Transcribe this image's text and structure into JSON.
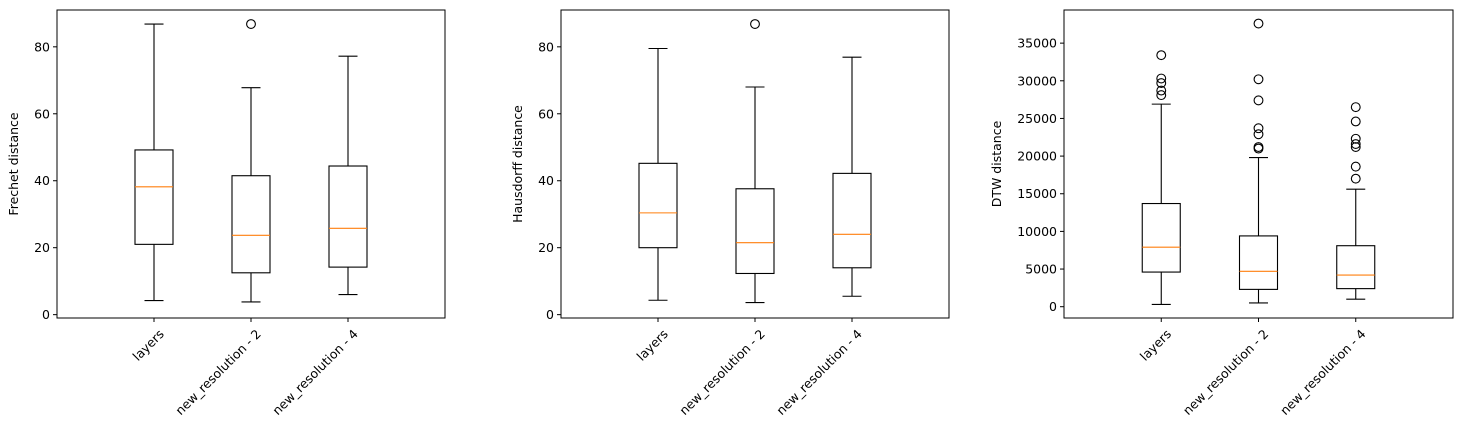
{
  "chart_data": [
    {
      "type": "boxplot",
      "ylabel": "Frechet distance",
      "categories": [
        "layers",
        "new_resolution - 2",
        "new_resolution - 4"
      ],
      "ylim": [
        -1,
        91
      ],
      "yticks": [
        0,
        20,
        40,
        60,
        80
      ],
      "boxes": [
        {
          "whisker_low": 4.2,
          "q1": 21.0,
          "median": 38.2,
          "q3": 49.2,
          "whisker_high": 86.8,
          "fliers": []
        },
        {
          "whisker_low": 3.8,
          "q1": 12.5,
          "median": 23.7,
          "q3": 41.5,
          "whisker_high": 67.8,
          "fliers": [
            86.8
          ]
        },
        {
          "whisker_low": 6.0,
          "q1": 14.2,
          "median": 25.8,
          "q3": 44.4,
          "whisker_high": 77.2,
          "fliers": []
        }
      ]
    },
    {
      "type": "boxplot",
      "ylabel": "Hausdorff distance",
      "categories": [
        "layers",
        "new_resolution - 2",
        "new_resolution - 4"
      ],
      "ylim": [
        -1,
        91
      ],
      "yticks": [
        0,
        20,
        40,
        60,
        80
      ],
      "boxes": [
        {
          "whisker_low": 4.3,
          "q1": 20.0,
          "median": 30.4,
          "q3": 45.2,
          "whisker_high": 79.5,
          "fliers": []
        },
        {
          "whisker_low": 3.6,
          "q1": 12.3,
          "median": 21.5,
          "q3": 37.6,
          "whisker_high": 68.0,
          "fliers": [
            86.8
          ]
        },
        {
          "whisker_low": 5.5,
          "q1": 14.0,
          "median": 24.0,
          "q3": 42.2,
          "whisker_high": 76.9,
          "fliers": []
        }
      ]
    },
    {
      "type": "boxplot",
      "ylabel": "DTW distance",
      "categories": [
        "layers",
        "new_resolution - 2",
        "new_resolution - 4"
      ],
      "ylim": [
        -1500,
        39400
      ],
      "yticks": [
        0,
        5000,
        10000,
        15000,
        20000,
        25000,
        30000,
        35000
      ],
      "boxes": [
        {
          "whisker_low": 300,
          "q1": 4600,
          "median": 7900,
          "q3": 13700,
          "whisker_high": 26900,
          "fliers": [
            28100,
            28700,
            29700,
            30300,
            33400
          ]
        },
        {
          "whisker_low": 500,
          "q1": 2300,
          "median": 4700,
          "q3": 9400,
          "whisker_high": 19800,
          "fliers": [
            21000,
            21200,
            22900,
            23700,
            27400,
            30200,
            37600
          ]
        },
        {
          "whisker_low": 1000,
          "q1": 2400,
          "median": 4200,
          "q3": 8100,
          "whisker_high": 15600,
          "fliers": [
            17000,
            18600,
            21200,
            21600,
            22300,
            24600,
            26500
          ]
        }
      ]
    }
  ],
  "colors": {
    "box": "#000000",
    "median": "#ff7f0e",
    "flier": "#000000"
  }
}
